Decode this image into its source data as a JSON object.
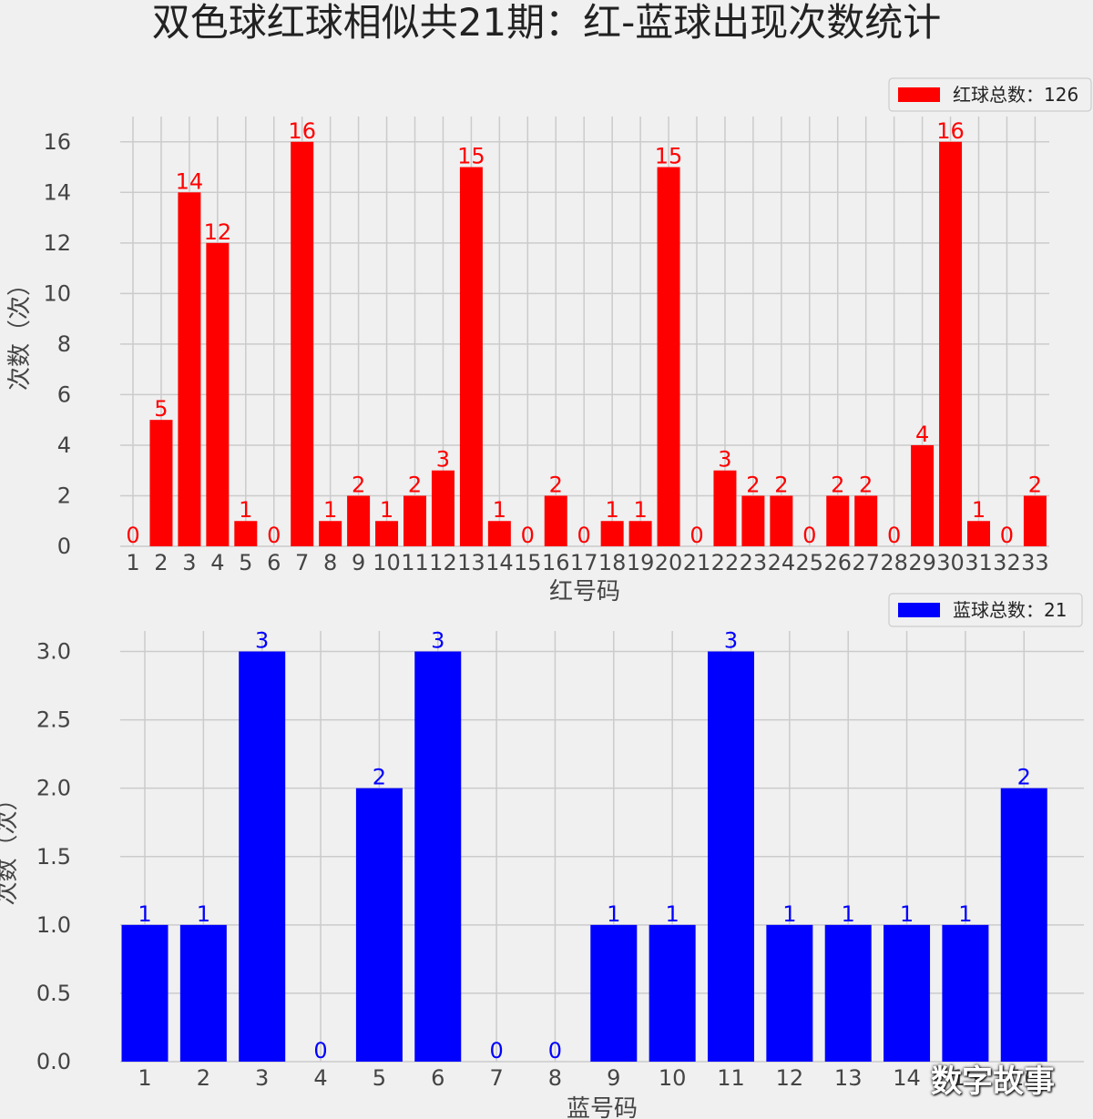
{
  "title": "双色球红球相似共21期：红-蓝球出现次数统计",
  "watermark": "数字故事",
  "chart_data": [
    {
      "type": "bar",
      "xlabel": "红号码",
      "ylabel": "次数（次）",
      "ylim": [
        0,
        17
      ],
      "yticks": [
        "0",
        "2",
        "4",
        "6",
        "8",
        "10",
        "12",
        "14",
        "16"
      ],
      "ytick_values": [
        0,
        2,
        4,
        6,
        8,
        10,
        12,
        14,
        16
      ],
      "categories": [
        "1",
        "2",
        "3",
        "4",
        "5",
        "6",
        "7",
        "8",
        "9",
        "10",
        "11",
        "12",
        "13",
        "14",
        "15",
        "16",
        "17",
        "18",
        "19",
        "20",
        "21",
        "22",
        "23",
        "24",
        "25",
        "26",
        "27",
        "28",
        "29",
        "30",
        "31",
        "32",
        "33"
      ],
      "values": [
        0,
        5,
        14,
        12,
        1,
        0,
        16,
        1,
        2,
        1,
        2,
        3,
        15,
        1,
        0,
        2,
        0,
        1,
        1,
        15,
        0,
        3,
        2,
        2,
        0,
        2,
        2,
        0,
        4,
        16,
        1,
        0,
        2
      ],
      "legend": "红球总数：126",
      "legend_position": "top-right",
      "color": "#ff0000",
      "grid": true
    },
    {
      "type": "bar",
      "xlabel": "蓝号码",
      "ylabel": "次数（次）",
      "ylim": [
        0,
        3.15
      ],
      "yticks": [
        "0.0",
        "0.5",
        "1.0",
        "1.5",
        "2.0",
        "2.5",
        "3.0"
      ],
      "ytick_values": [
        0,
        0.5,
        1,
        1.5,
        2,
        2.5,
        3
      ],
      "categories": [
        "1",
        "2",
        "3",
        "4",
        "5",
        "6",
        "7",
        "8",
        "9",
        "10",
        "11",
        "12",
        "13",
        "14",
        "15",
        "16"
      ],
      "values": [
        1,
        1,
        3,
        0,
        2,
        3,
        0,
        0,
        1,
        1,
        3,
        1,
        1,
        1,
        1,
        2
      ],
      "legend": "蓝球总数：21",
      "legend_position": "top-right",
      "color": "#0000ff",
      "grid": true
    }
  ]
}
